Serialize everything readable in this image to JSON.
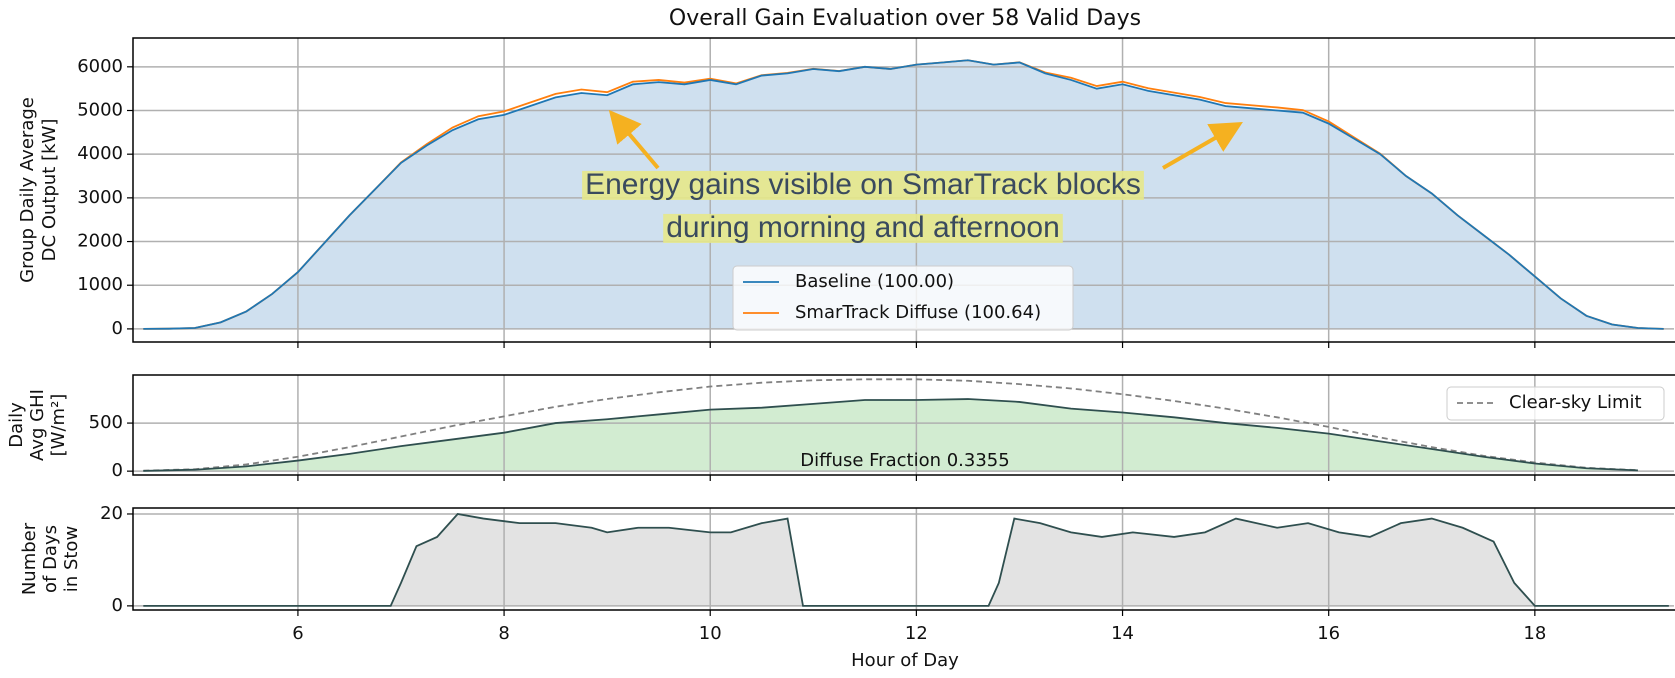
{
  "chart_data": [
    {
      "type": "area_line",
      "title": "Overall Gain Evaluation over 58 Valid Days",
      "ylabel": [
        "Group Daily Average",
        "DC Output [kW]"
      ],
      "annotation": [
        "Energy gains visible on SmarTrack blocks",
        "during morning and afternoon"
      ],
      "legend_loc": "lower center",
      "grid": true,
      "xlim": [
        4.4,
        19.35
      ],
      "xticks": [
        6,
        8,
        10,
        12,
        14,
        16,
        18
      ],
      "ylim": [
        -300,
        6660
      ],
      "yticks": [
        0,
        1000,
        2000,
        3000,
        4000,
        5000,
        6000
      ],
      "x": [
        4.5,
        4.75,
        5,
        5.25,
        5.5,
        5.75,
        6,
        6.25,
        6.5,
        6.75,
        7,
        7.25,
        7.5,
        7.75,
        8,
        8.25,
        8.5,
        8.75,
        9,
        9.25,
        9.5,
        9.75,
        10,
        10.25,
        10.5,
        10.75,
        11,
        11.25,
        11.5,
        11.75,
        12,
        12.25,
        12.5,
        12.75,
        13,
        13.25,
        13.5,
        13.75,
        14,
        14.25,
        14.5,
        14.75,
        15,
        15.25,
        15.5,
        15.75,
        16,
        16.25,
        16.5,
        16.75,
        17,
        17.25,
        17.5,
        17.75,
        18,
        18.25,
        18.5,
        18.75,
        19,
        19.25
      ],
      "series": [
        {
          "name": "SmarTrack Diffuse (100.64)",
          "color": "#ff7f0e",
          "fill": false,
          "values": [
            0,
            5,
            20,
            150,
            400,
            800,
            1300,
            1950,
            2600,
            3200,
            3810,
            4230,
            4610,
            4870,
            4980,
            5180,
            5380,
            5480,
            5420,
            5660,
            5700,
            5640,
            5730,
            5620,
            5810,
            5860,
            5955,
            5905,
            6000,
            5950,
            6050,
            6100,
            6150,
            6050,
            6105,
            5870,
            5750,
            5560,
            5660,
            5510,
            5410,
            5310,
            5170,
            5120,
            5070,
            5010,
            4750,
            4380,
            4010,
            3500,
            3100,
            2600,
            2150,
            1700,
            1200,
            700,
            300,
            100,
            20,
            0
          ]
        },
        {
          "name": "Baseline (100.00)",
          "color": "#1f77b4",
          "fill": "#cfe0ef",
          "values": [
            0,
            5,
            20,
            150,
            400,
            800,
            1300,
            1950,
            2600,
            3200,
            3800,
            4200,
            4550,
            4800,
            4900,
            5100,
            5300,
            5400,
            5350,
            5600,
            5650,
            5600,
            5700,
            5600,
            5800,
            5850,
            5950,
            5900,
            6000,
            5950,
            6050,
            6100,
            6150,
            6050,
            6100,
            5850,
            5700,
            5500,
            5600,
            5450,
            5350,
            5250,
            5100,
            5050,
            5000,
            4950,
            4700,
            4350,
            4000,
            3500,
            3100,
            2600,
            2150,
            1700,
            1200,
            700,
            300,
            100,
            20,
            0
          ]
        }
      ]
    },
    {
      "type": "area_line",
      "ylabel": [
        "Daily",
        "Avg GHI",
        "[W/m²]"
      ],
      "annotation": [
        "Diffuse Fraction 0.3355"
      ],
      "legend_loc": "upper right",
      "grid": true,
      "xlim": [
        4.4,
        19.35
      ],
      "xticks": [
        6,
        8,
        10,
        12,
        14,
        16,
        18
      ],
      "ylim": [
        -40,
        1000
      ],
      "yticks": [
        0,
        500
      ],
      "x": [
        4.5,
        5,
        5.5,
        6,
        6.5,
        7,
        7.5,
        8,
        8.5,
        9,
        9.5,
        10,
        10.5,
        11,
        11.5,
        12,
        12.5,
        13,
        13.5,
        14,
        14.5,
        15,
        15.5,
        16,
        16.5,
        17,
        17.5,
        18,
        18.5,
        19
      ],
      "series": [
        {
          "name": "Clear-sky Limit",
          "color": "#808080",
          "dashed": true,
          "fill": false,
          "values": [
            5,
            20,
            70,
            150,
            250,
            360,
            470,
            570,
            670,
            750,
            820,
            880,
            920,
            945,
            955,
            955,
            940,
            905,
            860,
            800,
            730,
            650,
            560,
            460,
            350,
            250,
            160,
            90,
            35,
            10
          ]
        },
        {
          "color": "#2f4f4f",
          "fill": "#d2ecd1",
          "values": [
            3,
            15,
            50,
            110,
            180,
            260,
            330,
            400,
            500,
            540,
            590,
            640,
            660,
            700,
            740,
            740,
            750,
            720,
            650,
            610,
            560,
            500,
            450,
            390,
            310,
            230,
            150,
            80,
            30,
            8
          ]
        }
      ]
    },
    {
      "type": "area_line",
      "ylabel": [
        "Number",
        "of Days",
        "in Stow"
      ],
      "xlabel": "Hour of Day",
      "grid": true,
      "xlim": [
        4.4,
        19.35
      ],
      "xticks": [
        6,
        8,
        10,
        12,
        14,
        16,
        18
      ],
      "ylim": [
        -0.9,
        21.3
      ],
      "yticks": [
        0,
        20
      ],
      "x": [
        4.5,
        6.9,
        7.0,
        7.15,
        7.35,
        7.55,
        7.8,
        8.15,
        8.5,
        8.85,
        9.0,
        9.3,
        9.6,
        10.0,
        10.2,
        10.5,
        10.75,
        10.9,
        12.7,
        12.8,
        12.95,
        13.2,
        13.5,
        13.8,
        14.1,
        14.5,
        14.8,
        15.1,
        15.5,
        15.8,
        16.1,
        16.4,
        16.7,
        17.0,
        17.3,
        17.6,
        17.8,
        18.0,
        19.3
      ],
      "series": [
        {
          "color": "#2f4f4f",
          "fill": "#e3e3e3",
          "values": [
            0,
            0,
            5,
            13,
            15,
            20,
            19,
            18,
            18,
            17,
            16,
            17,
            17,
            16,
            16,
            18,
            19,
            0,
            0,
            5,
            19,
            18,
            16,
            15,
            16,
            15,
            16,
            19,
            17,
            18,
            16,
            15,
            18,
            19,
            17,
            14,
            5,
            0,
            0
          ]
        }
      ]
    }
  ]
}
